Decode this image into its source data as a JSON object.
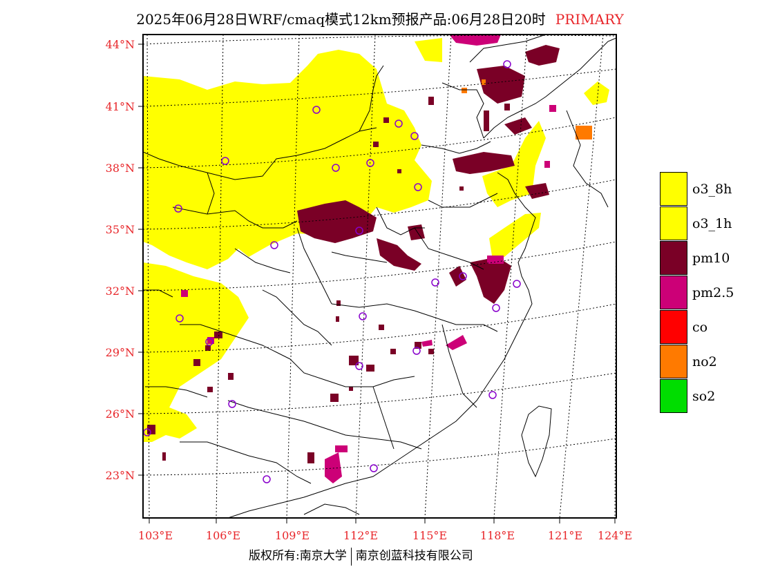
{
  "title": {
    "main": "2025年06月28日WRF/cmaq模式12km预报产品:06月28日20时",
    "tag": "PRIMARY"
  },
  "lat_labels": [
    "44°N",
    "41°N",
    "38°N",
    "35°N",
    "32°N",
    "29°N",
    "26°N",
    "23°N"
  ],
  "lon_labels": [
    "103°E",
    "106°E",
    "109°E",
    "112°E",
    "115°E",
    "118°E",
    "121°E",
    "124°E"
  ],
  "legend": [
    {
      "label": "o3_8h",
      "color": "#ffff00"
    },
    {
      "label": "o3_1h",
      "color": "#ffff00"
    },
    {
      "label": "pm10",
      "color": "#7a0026"
    },
    {
      "label": "pm2.5",
      "color": "#cc0077"
    },
    {
      "label": "co",
      "color": "#ff0000"
    },
    {
      "label": "no2",
      "color": "#ff7a00"
    },
    {
      "label": "so2",
      "color": "#00dd00"
    }
  ],
  "footer": {
    "left": "版权所有:南京大学",
    "right": "南京创蓝科技有限公司"
  },
  "colors": {
    "label_red": "#e8262a",
    "station_marker": "#8800cc",
    "o3": "#ffff00",
    "pm10": "#7a0026",
    "pm25": "#cc0077",
    "no2": "#ff7a00"
  }
}
